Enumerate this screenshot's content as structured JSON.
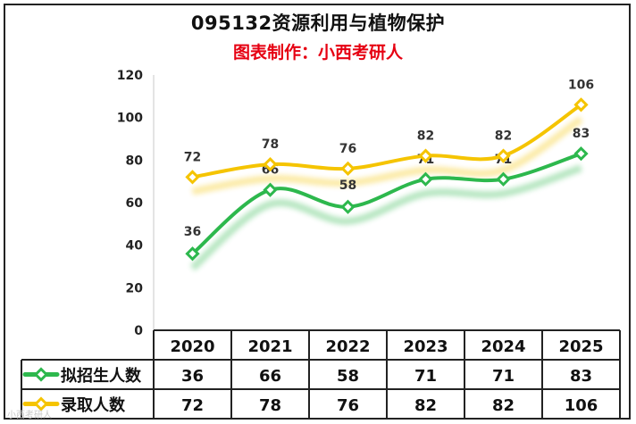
{
  "chart_data": {
    "type": "line",
    "title": "095132资源利用与植物保护",
    "subtitle": "图表制作：小西考研人",
    "categories": [
      "2020",
      "2021",
      "2022",
      "2023",
      "2024",
      "2025"
    ],
    "series": [
      {
        "name": "拟招生人数",
        "values": [
          36,
          66,
          58,
          71,
          71,
          83
        ],
        "color": "#2db84d"
      },
      {
        "name": "录取人数",
        "values": [
          72,
          78,
          76,
          82,
          82,
          106
        ],
        "color": "#f5c400"
      }
    ],
    "ylim": [
      0,
      120
    ],
    "yticks": [
      0,
      20,
      40,
      60,
      80,
      100,
      120
    ],
    "smooth": true,
    "data_table": true,
    "grid": false
  },
  "watermark": "小西考研人"
}
